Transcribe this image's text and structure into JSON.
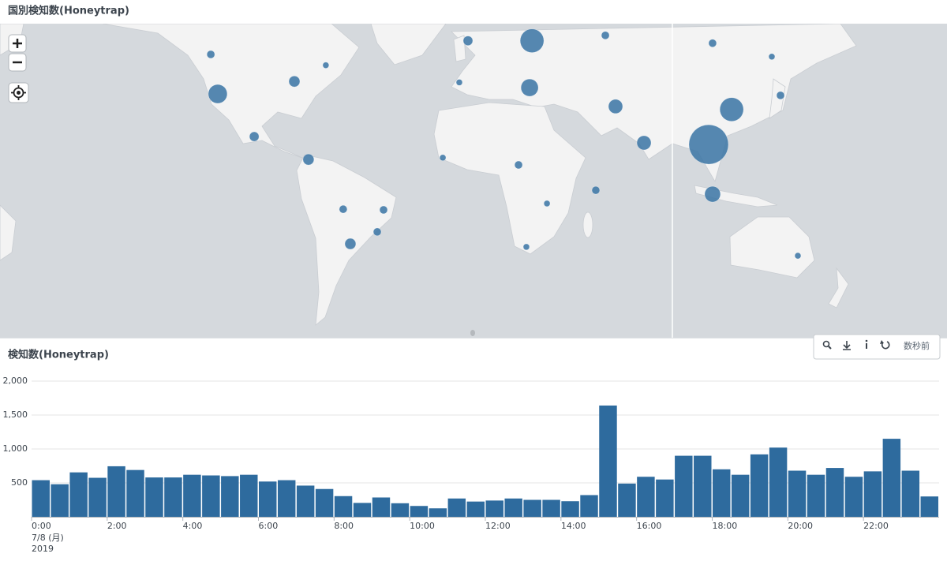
{
  "chart_data": [
    {
      "type": "bubble-map",
      "title": "国別検知数(Honeytrap)",
      "color": "#3f77a6",
      "lon": [
        -118.5,
        -115.3,
        -80,
        -65.5,
        -98.5,
        -73.5,
        -57.5,
        -38.9,
        -41.8,
        -54.2,
        -11.6,
        0,
        -4,
        29.5,
        28.4,
        63.3,
        68,
        81.1,
        23.3,
        36.4,
        58.9,
        26.9,
        112.7,
        140,
        121.5,
        110.9,
        144,
        112.7,
        152
      ],
      "lat": [
        54.3,
        42.3,
        46.4,
        51.3,
        26.2,
        16.4,
        -6.2,
        -6.5,
        -16.4,
        -21.6,
        17.2,
        57.8,
        46.1,
        57.8,
        44.4,
        59.1,
        37.9,
        23.6,
        14.0,
        -3.6,
        2.5,
        -22.9,
        57.2,
        53.7,
        36.8,
        22.9,
        41.8,
        0.7,
        -26.6
      ],
      "values": [
        240,
        1380,
        470,
        150,
        350,
        470,
        240,
        240,
        240,
        470,
        150,
        350,
        150,
        2160,
        1160,
        240,
        780,
        780,
        240,
        150,
        240,
        150,
        240,
        150,
        2160,
        6000,
        240,
        960,
        150
      ]
    },
    {
      "type": "bar",
      "title": "検知数(Honeytrap)",
      "color": "#2e6b9e",
      "categories": [
        "0:00",
        null,
        null,
        null,
        "2:00",
        null,
        null,
        null,
        "4:00",
        null,
        null,
        null,
        "6:00",
        null,
        null,
        null,
        "8:00",
        null,
        null,
        null,
        "10:00",
        null,
        null,
        null,
        "12:00",
        null,
        null,
        null,
        "14:00",
        null,
        null,
        null,
        "16:00",
        null,
        null,
        null,
        "18:00",
        null,
        null,
        null,
        "20:00",
        null,
        null,
        null,
        "22:00",
        null,
        null,
        null
      ],
      "x_sublabels": [
        "7/8 (月)",
        "2019"
      ],
      "values": [
        540,
        480,
        655,
        575,
        745,
        690,
        580,
        580,
        620,
        610,
        600,
        620,
        520,
        540,
        460,
        410,
        305,
        205,
        285,
        200,
        160,
        125,
        270,
        225,
        240,
        270,
        250,
        250,
        230,
        320,
        1640,
        490,
        590,
        550,
        900,
        900,
        700,
        620,
        920,
        1020,
        680,
        620,
        720,
        590,
        670,
        1150,
        680,
        300
      ],
      "ylim": [
        0,
        2000
      ],
      "yticks": [
        500,
        {
          "value": 1000,
          "label": "1,000"
        },
        {
          "value": 1500,
          "label": "1,500"
        },
        {
          "value": 2000,
          "label": "2,000"
        }
      ],
      "grid": true
    }
  ],
  "toolbar": {
    "status": "数秒前"
  }
}
